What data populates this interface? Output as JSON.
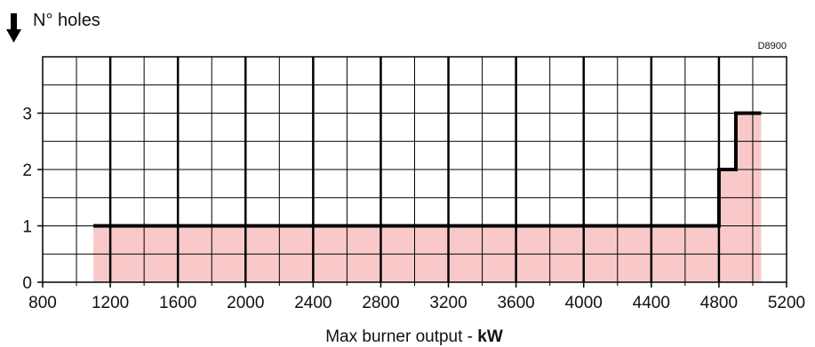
{
  "chart_data": {
    "type": "line",
    "title": "N° holes",
    "code": "D8900",
    "xlabel": "Max burner output - ",
    "xlabel_unit": "kW",
    "xlim": [
      800,
      5200
    ],
    "ylim": [
      0,
      4
    ],
    "x_ticks": [
      800,
      1200,
      1600,
      2000,
      2400,
      2800,
      3200,
      3600,
      4000,
      4400,
      4800,
      5200
    ],
    "y_ticks": [
      0,
      1,
      2,
      3
    ],
    "minor_x_step": 200,
    "minor_y_step": 0.5,
    "grid": true,
    "fill_color": "#f9c9c9",
    "line_color": "#000000",
    "series": [
      {
        "x": [
          1100,
          4800,
          4800,
          4900,
          4900,
          5050
        ],
        "y": [
          1,
          1,
          2,
          2,
          3,
          3
        ]
      }
    ]
  }
}
